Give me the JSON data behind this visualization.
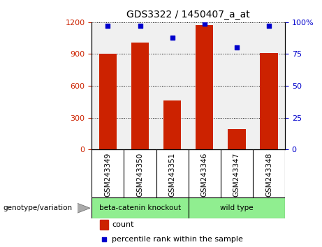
{
  "title": "GDS3322 / 1450407_a_at",
  "categories": [
    "GSM243349",
    "GSM243350",
    "GSM243351",
    "GSM243346",
    "GSM243347",
    "GSM243348"
  ],
  "counts": [
    900,
    1010,
    460,
    1175,
    195,
    910
  ],
  "percentile_ranks": [
    97,
    97,
    88,
    99,
    80,
    97
  ],
  "ylim_left": [
    0,
    1200
  ],
  "ylim_right": [
    0,
    100
  ],
  "yticks_left": [
    0,
    300,
    600,
    900,
    1200
  ],
  "yticks_right": [
    0,
    25,
    50,
    75,
    100
  ],
  "bar_color": "#cc2200",
  "dot_color": "#0000cc",
  "bg_plot": "#f0f0f0",
  "bg_label_row": "#c8c8c8",
  "bg_knockout": "#90ee90",
  "bg_wildtype": "#90ee90",
  "group1_label": "beta-catenin knockout",
  "group2_label": "wild type",
  "group1_indices": [
    0,
    1,
    2
  ],
  "group2_indices": [
    3,
    4,
    5
  ],
  "legend_count_label": "count",
  "legend_pct_label": "percentile rank within the sample",
  "genotype_label": "genotype/variation"
}
